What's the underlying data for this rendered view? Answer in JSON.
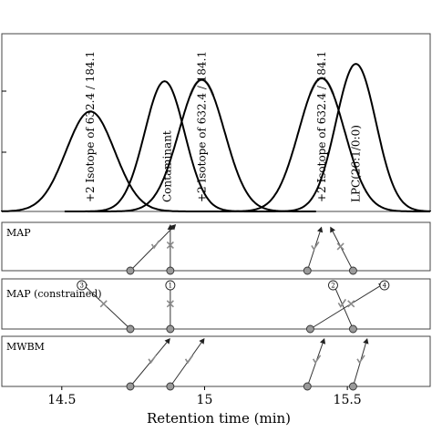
{
  "chart_data": {
    "type": "line",
    "xlabel": "Retention time (min)",
    "xlim": [
      14.29,
      15.79
    ],
    "xticks": [
      14.5,
      15.0,
      15.5
    ],
    "xtick_labels": [
      "14.5",
      "15",
      "15.5"
    ],
    "chromatogram": {
      "ylim": [
        0,
        1.12
      ],
      "peaks": [
        {
          "label": "+2 Isotope of 632.4 / 184.1",
          "center": 14.6,
          "height": 0.63,
          "width": 0.085,
          "label_x": 14.6,
          "highlight": false
        },
        {
          "label": "Contaminant",
          "center": 14.86,
          "height": 0.82,
          "width": 0.07,
          "label_x": 14.87,
          "highlight": false
        },
        {
          "label": "+2 Isotope of 632.4 / 184.1",
          "center": 14.99,
          "height": 0.83,
          "width": 0.08,
          "label_x": 14.99,
          "highlight": true
        },
        {
          "label": "+2 Isotope of 632.4 / 184.1",
          "center": 15.41,
          "height": 0.84,
          "width": 0.08,
          "label_x": 15.41,
          "highlight": true
        },
        {
          "label": "LPC(26:1/0:0)",
          "center": 15.53,
          "height": 0.93,
          "width": 0.07,
          "label_x": 15.53,
          "highlight": false
        }
      ]
    },
    "panels": [
      {
        "title": "MAP",
        "nodes": [
          14.74,
          14.88,
          15.36,
          15.52
        ],
        "arrows": [
          {
            "from": 14.74,
            "to": 14.9,
            "to_level": 1.0,
            "mark": "check"
          },
          {
            "from": 14.88,
            "to": 14.88,
            "to_level": 1.0,
            "mark": "cross"
          },
          {
            "from": 15.36,
            "to": 15.41,
            "to_level": 0.95,
            "mark": "check"
          },
          {
            "from": 15.52,
            "to": 15.44,
            "to_level": 0.95,
            "mark": "cross"
          }
        ],
        "circled": []
      },
      {
        "title": "MAP (constrained)",
        "nodes": [
          14.74,
          14.88,
          15.37,
          15.52
        ],
        "arrows": [
          {
            "from": 14.74,
            "to": 14.57,
            "to_level": 0.95,
            "mark": "cross"
          },
          {
            "from": 14.88,
            "to": 14.88,
            "to_level": 0.95,
            "mark": "cross"
          },
          {
            "from": 15.37,
            "to": 15.63,
            "to_level": 0.95,
            "mark": "cross"
          },
          {
            "from": 15.52,
            "to": 15.45,
            "to_level": 0.95,
            "mark": "check"
          }
        ],
        "circled": [
          {
            "label": "3",
            "x": 14.57
          },
          {
            "label": "1",
            "x": 14.88
          },
          {
            "label": "2",
            "x": 15.45
          },
          {
            "label": "4",
            "x": 15.63
          }
        ]
      },
      {
        "title": "MWBM",
        "nodes": [
          14.74,
          14.88,
          15.36,
          15.52
        ],
        "arrows": [
          {
            "from": 14.74,
            "to": 14.88,
            "to_level": 1.0,
            "mark": "check"
          },
          {
            "from": 14.88,
            "to": 15.0,
            "to_level": 1.0,
            "mark": "check"
          },
          {
            "from": 15.36,
            "to": 15.42,
            "to_level": 1.0,
            "mark": "check"
          },
          {
            "from": 15.52,
            "to": 15.57,
            "to_level": 1.0,
            "mark": "check"
          }
        ],
        "circled": []
      }
    ]
  }
}
